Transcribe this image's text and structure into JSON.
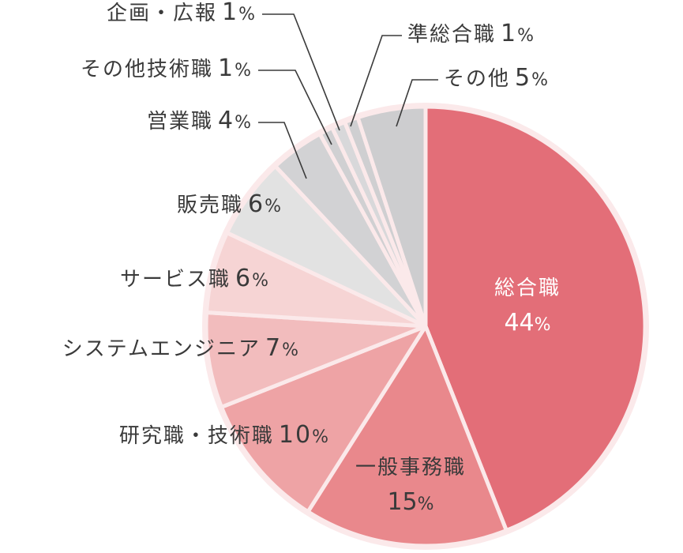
{
  "chart_data": {
    "type": "pie",
    "start": "12 o'clock",
    "direction": "clockwise",
    "slices": [
      {
        "label": "総合職",
        "value": 44,
        "display": "44%",
        "color": "#e36e78"
      },
      {
        "label": "一般事務職",
        "value": 15,
        "display": "15%",
        "color": "#e9888c"
      },
      {
        "label": "研究職・技術職",
        "value": 10,
        "display": "10%",
        "color": "#eea3a5"
      },
      {
        "label": "システムエンジニア",
        "value": 7,
        "display": "7%",
        "color": "#f2bcbd"
      },
      {
        "label": "サービス職",
        "value": 6,
        "display": "6%",
        "color": "#f6d4d4"
      },
      {
        "label": "販売職",
        "value": 6,
        "display": "6%",
        "color": "#e2e2e2"
      },
      {
        "label": "営業職",
        "value": 4,
        "display": "4%",
        "color": "#d2d2d4"
      },
      {
        "label": "その他技術職",
        "value": 1,
        "display": "1%",
        "color": "#d0d0d2"
      },
      {
        "label": "企画・広報",
        "value": 1,
        "display": "1%",
        "color": "#d8d8da"
      },
      {
        "label": "準総合職",
        "value": 1,
        "display": "1%",
        "color": "#cfcfd1"
      },
      {
        "label": "その他",
        "value": 5,
        "display": "5%",
        "color": "#cdcdcf"
      }
    ]
  }
}
